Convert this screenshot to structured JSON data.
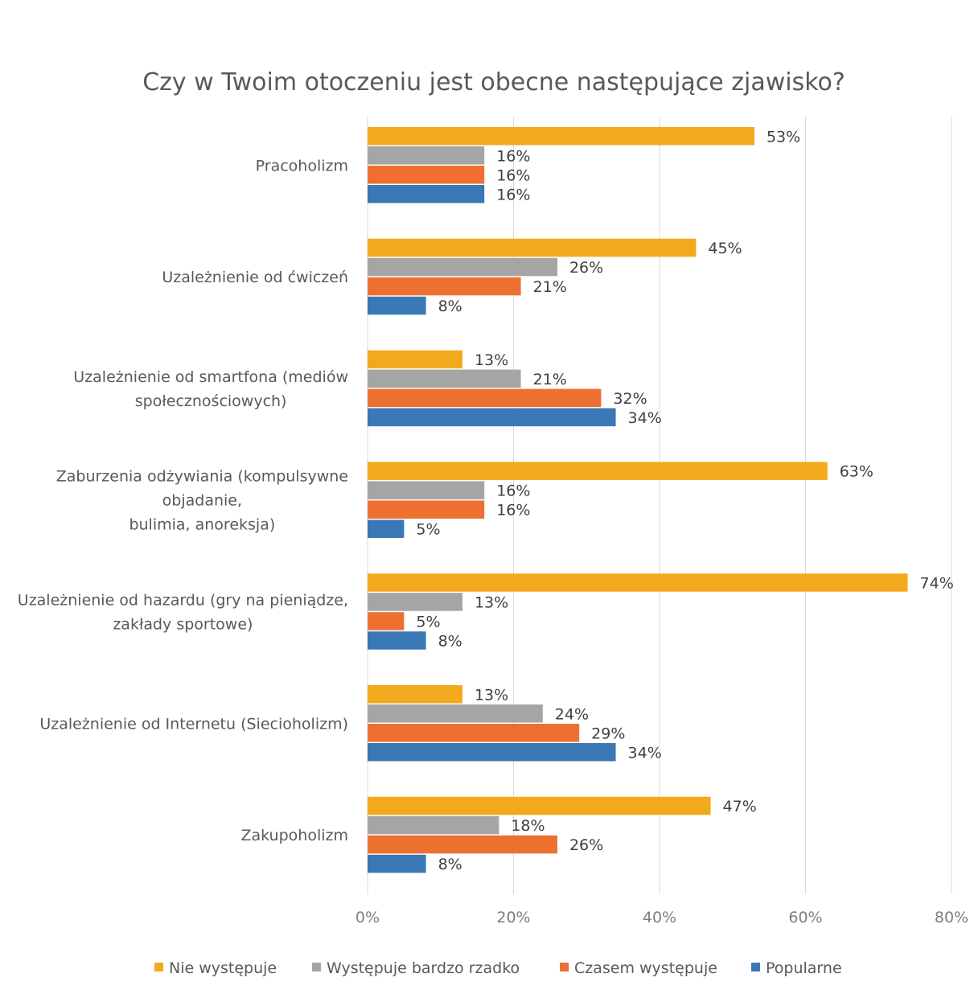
{
  "chart_data": {
    "type": "bar",
    "orientation": "horizontal",
    "title": "Czy w Twoim otoczeniu jest obecne następujące zjawisko?",
    "categories": [
      [
        "Pracoholizm"
      ],
      [
        "Uzależnienie od ćwiczeń"
      ],
      [
        "Uzależnienie od smartfona (mediów",
        "społecznościowych)"
      ],
      [
        "Zaburzenia odżywiania (kompulsywne",
        "objadanie,",
        "bulimia, anoreksja)"
      ],
      [
        "Uzależnienie od hazardu (gry na pieniądze,",
        "zakłady sportowe)"
      ],
      [
        "Uzależnienie od Internetu (Siecioholizm)"
      ],
      [
        "Zakupoholizm"
      ]
    ],
    "series": [
      {
        "name": "Nie występuje",
        "color": "#f2a91d",
        "values": [
          53,
          45,
          13,
          63,
          74,
          13,
          47
        ],
        "labels": [
          "53%",
          "45%",
          "13%",
          "63%",
          "74%",
          "13%",
          "47%"
        ]
      },
      {
        "name": "Występuje bardzo rzadko",
        "color": "#a5a5a5",
        "values": [
          16,
          26,
          21,
          16,
          13,
          24,
          18
        ],
        "labels": [
          "16%",
          "26%",
          "21%",
          "16%",
          "13%",
          "24%",
          "18%"
        ]
      },
      {
        "name": "Czasem występuje",
        "color": "#ed7031",
        "values": [
          16,
          21,
          32,
          16,
          5,
          29,
          26
        ],
        "labels": [
          "16%",
          "21%",
          "32%",
          "16%",
          "5%",
          "29%",
          "26%"
        ]
      },
      {
        "name": "Popularne",
        "color": "#3a78b5",
        "values": [
          16,
          8,
          34,
          5,
          8,
          34,
          8
        ],
        "labels": [
          "16%",
          "8%",
          "34%",
          "5%",
          "8%",
          "34%",
          "8%"
        ]
      }
    ],
    "xlim": [
      0,
      80
    ],
    "xticks": [
      0,
      20,
      40,
      60,
      80
    ],
    "xtick_labels": [
      "0%",
      "20%",
      "40%",
      "60%",
      "80%"
    ],
    "grid": true,
    "legend_position": "bottom"
  }
}
